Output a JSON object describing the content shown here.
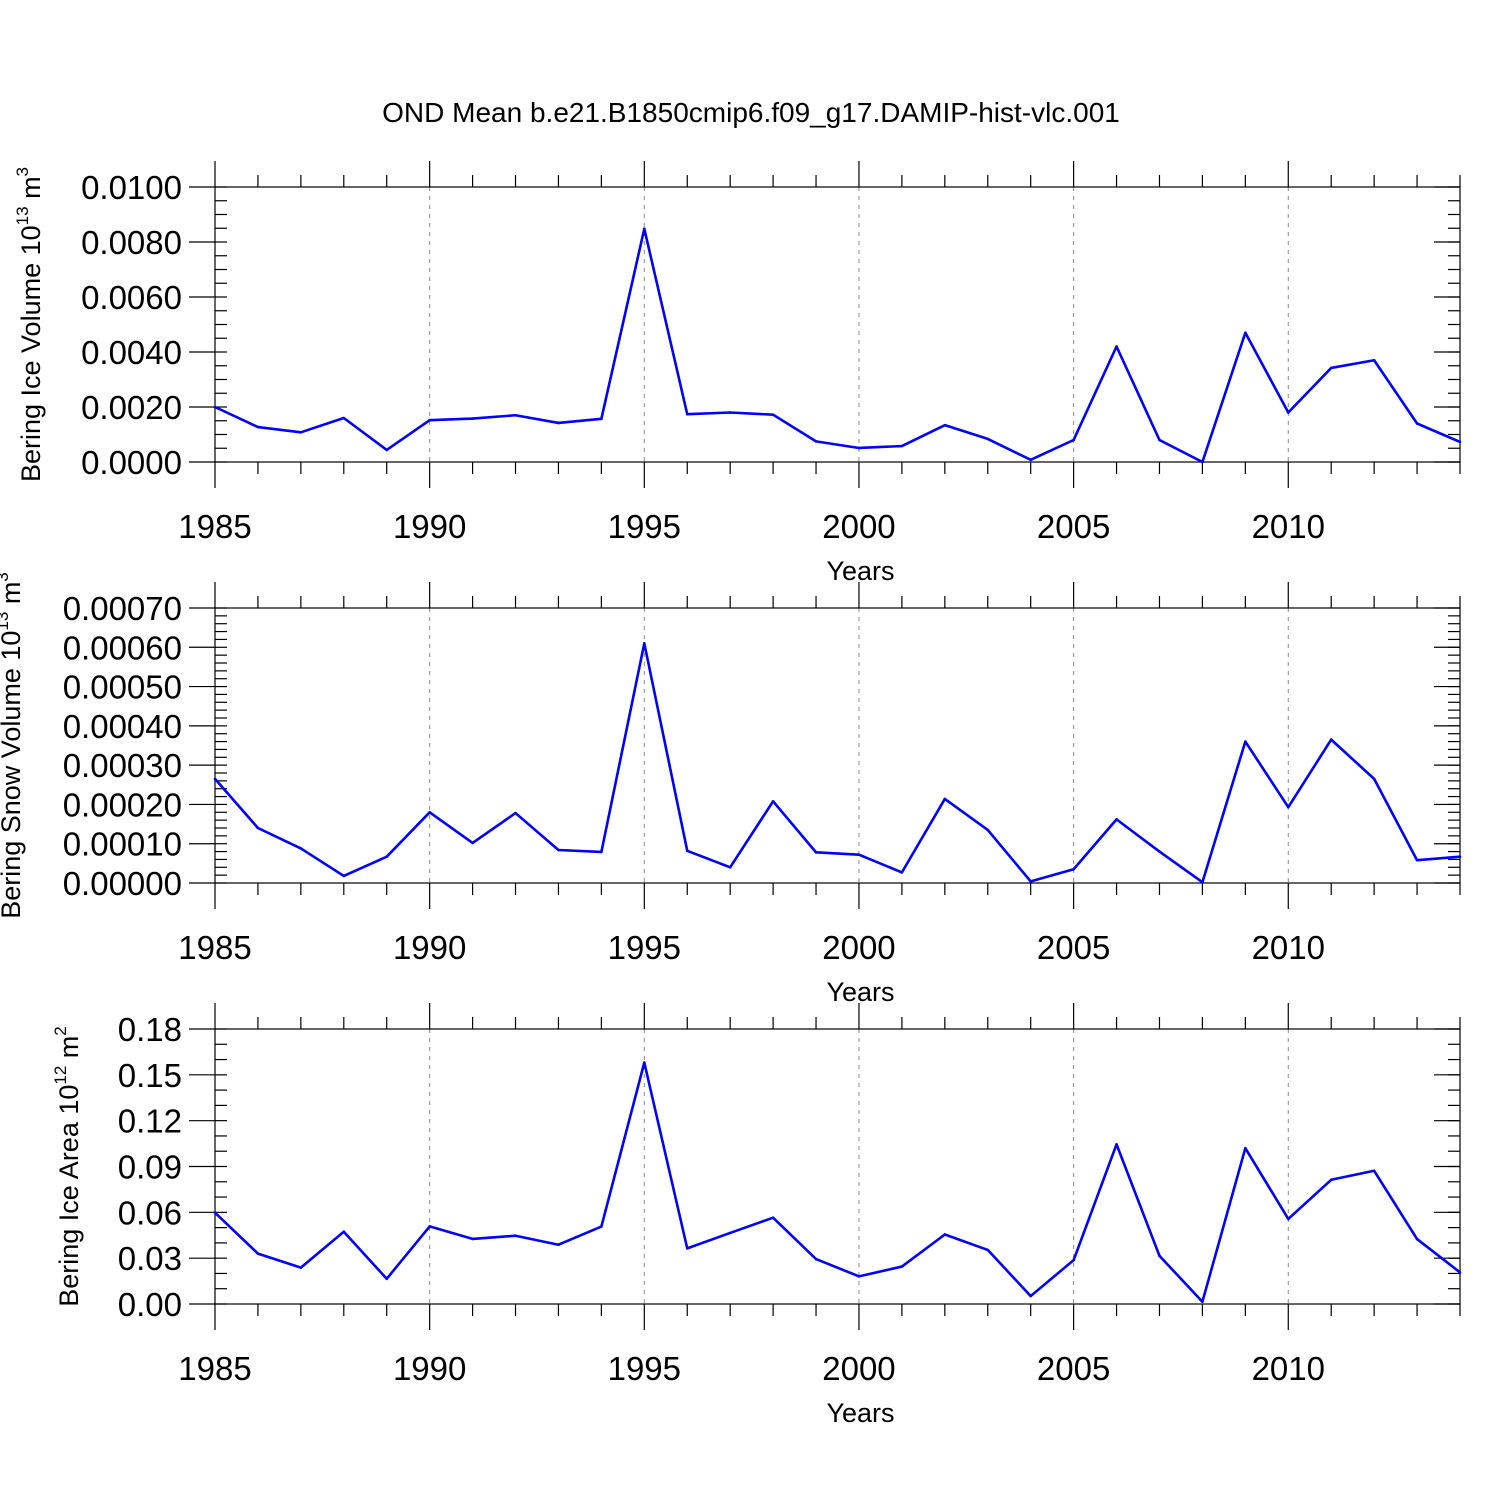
{
  "figure": {
    "title": "OND Mean b.e21.B1850cmip6.f09_g17.DAMIP-hist-vlc.001",
    "line_color": "#0000ff",
    "grid_color": "#888888"
  },
  "chart_data": [
    {
      "type": "line",
      "title": "OND Mean b.e21.B1850cmip6.f09_g17.DAMIP-hist-vlc.001",
      "xlabel": "Years",
      "ylabel": {
        "text": "Bering Ice Volume 10",
        "power": "13",
        "unit": " m",
        "unit_power": "3"
      },
      "xlim": [
        1985,
        2014
      ],
      "ylim": [
        0,
        0.01
      ],
      "xticks": [
        1985,
        1990,
        1995,
        2000,
        2005,
        2010
      ],
      "xtick_labels": [
        "1985",
        "1990",
        "1995",
        "2000",
        "2005",
        "2010"
      ],
      "yticks": [
        0,
        0.002,
        0.004,
        0.006,
        0.008,
        0.01
      ],
      "ytick_labels": [
        "0.0000",
        "0.0020",
        "0.0040",
        "0.0060",
        "0.0080",
        "0.0100"
      ],
      "y_minor_step": 0.0005,
      "grid": "vertical dashed at major x ticks",
      "x": [
        1985,
        1986,
        1987,
        1988,
        1989,
        1990,
        1991,
        1992,
        1993,
        1994,
        1995,
        1996,
        1997,
        1998,
        1999,
        2000,
        2001,
        2002,
        2003,
        2004,
        2005,
        2006,
        2007,
        2008,
        2009,
        2010,
        2011,
        2012,
        2013,
        2014
      ],
      "series": [
        {
          "name": "Bering Ice Volume",
          "values": [
            0.002,
            0.00127,
            0.00108,
            0.0016,
            0.00044,
            0.00152,
            0.00158,
            0.0017,
            0.00142,
            0.00157,
            0.00848,
            0.00174,
            0.0018,
            0.00172,
            0.00075,
            0.00051,
            0.00058,
            0.00134,
            0.00084,
            8e-05,
            0.0008,
            0.0042,
            0.0008,
            0.0,
            0.0047,
            0.0018,
            0.00342,
            0.0037,
            0.0014,
            0.00073
          ]
        }
      ]
    },
    {
      "type": "line",
      "title": "",
      "xlabel": "Years",
      "ylabel": {
        "text": "Bering Snow Volume 10",
        "power": "13",
        "unit": " m",
        "unit_power": "3"
      },
      "xlim": [
        1985,
        2014
      ],
      "ylim": [
        0,
        0.0007
      ],
      "xticks": [
        1985,
        1990,
        1995,
        2000,
        2005,
        2010
      ],
      "xtick_labels": [
        "1985",
        "1990",
        "1995",
        "2000",
        "2005",
        "2010"
      ],
      "yticks": [
        0,
        0.0001,
        0.0002,
        0.0003,
        0.0004,
        0.0005,
        0.0006,
        0.0007
      ],
      "ytick_labels": [
        "0.00000",
        "0.00010",
        "0.00020",
        "0.00030",
        "0.00040",
        "0.00050",
        "0.00060",
        "0.00070"
      ],
      "y_minor_step": 2e-05,
      "grid": "vertical dashed at major x ticks",
      "x": [
        1985,
        1986,
        1987,
        1988,
        1989,
        1990,
        1991,
        1992,
        1993,
        1994,
        1995,
        1996,
        1997,
        1998,
        1999,
        2000,
        2001,
        2002,
        2003,
        2004,
        2005,
        2006,
        2007,
        2008,
        2009,
        2010,
        2011,
        2012,
        2013,
        2014
      ],
      "series": [
        {
          "name": "Bering Snow Volume",
          "values": [
            0.000265,
            0.00014,
            8.8e-05,
            1.8e-05,
            6.7e-05,
            0.00018,
            0.000102,
            0.000178,
            8.4e-05,
            7.9e-05,
            0.00061,
            8.2e-05,
            4e-05,
            0.000208,
            7.8e-05,
            7.2e-05,
            2.7e-05,
            0.000214,
            0.000135,
            4e-06,
            3.5e-05,
            0.000162,
            8e-05,
            2e-06,
            0.00036,
            0.000193,
            0.000365,
            0.000265,
            5.8e-05,
            6.7e-05
          ]
        }
      ]
    },
    {
      "type": "line",
      "title": "",
      "xlabel": "Years",
      "ylabel": {
        "text": "Bering Ice Area 10",
        "power": "12",
        "unit": " m",
        "unit_power": "2"
      },
      "xlim": [
        1985,
        2014
      ],
      "ylim": [
        0,
        0.18
      ],
      "xticks": [
        1985,
        1990,
        1995,
        2000,
        2005,
        2010
      ],
      "xtick_labels": [
        "1985",
        "1990",
        "1995",
        "2000",
        "2005",
        "2010"
      ],
      "yticks": [
        0,
        0.03,
        0.06,
        0.09,
        0.12,
        0.15,
        0.18
      ],
      "ytick_labels": [
        "0.00",
        "0.03",
        "0.06",
        "0.09",
        "0.12",
        "0.15",
        "0.18"
      ],
      "y_minor_step": 0.01,
      "grid": "vertical dashed at major x ticks",
      "x": [
        1985,
        1986,
        1987,
        1988,
        1989,
        1990,
        1991,
        1992,
        1993,
        1994,
        1995,
        1996,
        1997,
        1998,
        1999,
        2000,
        2001,
        2002,
        2003,
        2004,
        2005,
        2006,
        2007,
        2008,
        2009,
        2010,
        2011,
        2012,
        2013,
        2014
      ],
      "series": [
        {
          "name": "Bering Ice Area",
          "values": [
            0.0598,
            0.033,
            0.0238,
            0.0473,
            0.0165,
            0.0508,
            0.0426,
            0.0447,
            0.0388,
            0.0507,
            0.158,
            0.0364,
            0.0465,
            0.0565,
            0.0294,
            0.0181,
            0.0245,
            0.0455,
            0.0354,
            0.0052,
            0.0287,
            0.1045,
            0.0315,
            0.0015,
            0.102,
            0.0557,
            0.0813,
            0.0872,
            0.0425,
            0.0207
          ]
        }
      ]
    }
  ]
}
